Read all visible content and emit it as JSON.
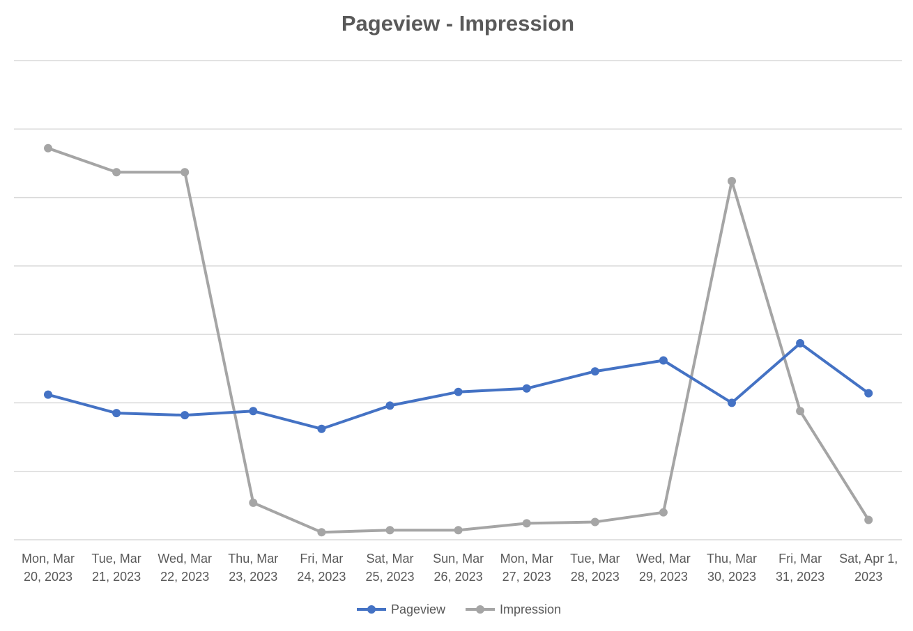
{
  "chart_data": {
    "type": "line",
    "title": "Pageview - Impression",
    "xlabel": "",
    "ylabel": "",
    "categories": [
      [
        "Mon, Mar",
        "20, 2023"
      ],
      [
        "Tue, Mar",
        "21, 2023"
      ],
      [
        "Wed, Mar",
        "22, 2023"
      ],
      [
        "Thu, Mar",
        "23, 2023"
      ],
      [
        "Fri, Mar",
        "24, 2023"
      ],
      [
        "Sat, Mar",
        "25, 2023"
      ],
      [
        "Sun, Mar",
        "26, 2023"
      ],
      [
        "Mon, Mar",
        "27, 2023"
      ],
      [
        "Tue, Mar",
        "28, 2023"
      ],
      [
        "Wed, Mar",
        "29, 2023"
      ],
      [
        "Thu, Mar",
        "30, 2023"
      ],
      [
        "Fri, Mar",
        "31, 2023"
      ],
      [
        "Sat, Apr 1,",
        "2023"
      ]
    ],
    "ylim": [
      0,
      7
    ],
    "gridlines": 7,
    "y_tick_labels_shown": false,
    "grid": true,
    "legend_position": "bottom",
    "series": [
      {
        "name": "Pageview",
        "color": "#4472C4",
        "values": [
          2.12,
          1.85,
          1.82,
          1.88,
          1.62,
          1.96,
          2.16,
          2.21,
          2.46,
          2.62,
          2.0,
          2.87,
          2.14
        ]
      },
      {
        "name": "Impression",
        "color": "#A5A5A5",
        "values": [
          5.72,
          5.37,
          5.37,
          0.54,
          0.11,
          0.14,
          0.14,
          0.24,
          0.26,
          0.4,
          5.24,
          1.88,
          0.29
        ]
      }
    ]
  }
}
